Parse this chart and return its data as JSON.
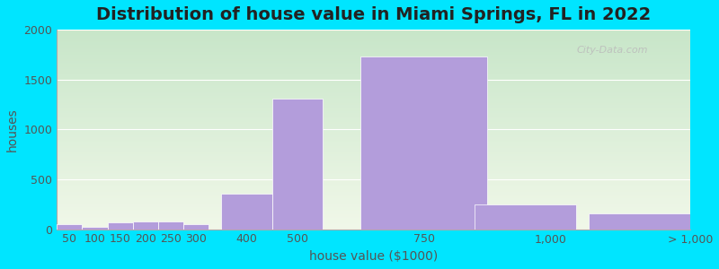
{
  "title": "Distribution of house value in Miami Springs, FL in 2022",
  "xlabel": "house value ($1000)",
  "ylabel": "houses",
  "bar_color": "#b39ddb",
  "outer_bg": "#00e5ff",
  "ylim": [
    0,
    2000
  ],
  "yticks": [
    0,
    500,
    1000,
    1500,
    2000
  ],
  "categories": [
    "50",
    "100",
    "150",
    "200",
    "250",
    "300",
    "400",
    "500",
    "750",
    "1,000",
    "> 1,000"
  ],
  "values": [
    55,
    20,
    65,
    75,
    80,
    55,
    360,
    1310,
    1730,
    250,
    155
  ],
  "title_fontsize": 14,
  "axis_fontsize": 10,
  "tick_fontsize": 9,
  "watermark_text": "City-Data.com",
  "bar_lefts": [
    25,
    75,
    125,
    175,
    225,
    275,
    350,
    450,
    625,
    850,
    1075
  ],
  "bar_ws": [
    50,
    50,
    50,
    50,
    50,
    50,
    100,
    100,
    250,
    200,
    200
  ],
  "tick_positions": [
    50,
    100,
    150,
    200,
    250,
    300,
    400,
    500,
    750,
    1000,
    1275
  ],
  "xlim": [
    25,
    1275
  ],
  "bg_top": "#c8e6c9",
  "bg_bottom": "#f1f8e9"
}
